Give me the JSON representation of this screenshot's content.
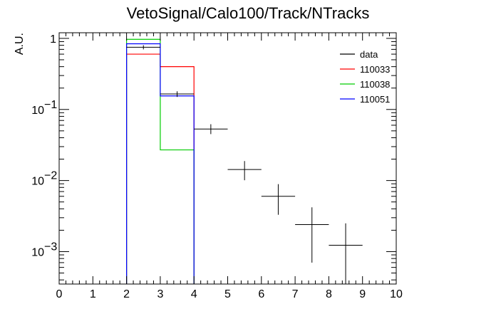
{
  "chart_data": {
    "type": "histogram",
    "title": "VetoSignal/Calo100/Track/NTracks",
    "ylabel": "A.U.",
    "xlabel": "",
    "xlim": [
      0,
      10
    ],
    "ylim": [
      0.00035,
      1.2
    ],
    "y_scale": "log",
    "grid": false,
    "legend_position": "top-right",
    "x_ticks": [
      "0",
      "1",
      "2",
      "3",
      "4",
      "5",
      "6",
      "7",
      "8",
      "9",
      "10"
    ],
    "y_ticks": [
      {
        "value": 1,
        "mantissa": "1",
        "exponent": ""
      },
      {
        "value": 0.1,
        "mantissa": "10",
        "exponent": "−1"
      },
      {
        "value": 0.01,
        "mantissa": "10",
        "exponent": "−2"
      },
      {
        "value": 0.001,
        "mantissa": "10",
        "exponent": "−3"
      }
    ],
    "data_points": [
      {
        "x": 2.5,
        "xerr": 0.5,
        "y": 0.75,
        "ylo": 0.7,
        "yhi": 0.8
      },
      {
        "x": 3.5,
        "xerr": 0.5,
        "y": 0.165,
        "ylo": 0.15,
        "yhi": 0.18
      },
      {
        "x": 4.5,
        "xerr": 0.5,
        "y": 0.053,
        "ylo": 0.045,
        "yhi": 0.062
      },
      {
        "x": 5.5,
        "xerr": 0.5,
        "y": 0.0143,
        "ylo": 0.0101,
        "yhi": 0.0188
      },
      {
        "x": 6.5,
        "xerr": 0.5,
        "y": 0.006,
        "ylo": 0.0033,
        "yhi": 0.0089
      },
      {
        "x": 7.5,
        "xerr": 0.5,
        "y": 0.0024,
        "ylo": 0.0007,
        "yhi": 0.0042
      },
      {
        "x": 8.5,
        "xerr": 0.5,
        "y": 0.00123,
        "ylo": 0.00035,
        "yhi": 0.0025
      }
    ],
    "series": [
      {
        "name": "data",
        "color": "#000000",
        "kind": "points"
      },
      {
        "name": "110033",
        "color": "#ff0000",
        "kind": "step",
        "bins": [
          {
            "x0": 2,
            "x1": 3,
            "y": 0.6
          },
          {
            "x0": 3,
            "x1": 4,
            "y": 0.4
          }
        ]
      },
      {
        "name": "110038",
        "color": "#00cc00",
        "kind": "step",
        "bins": [
          {
            "x0": 2,
            "x1": 3,
            "y": 0.97
          },
          {
            "x0": 3,
            "x1": 4,
            "y": 0.027
          }
        ]
      },
      {
        "name": "110051",
        "color": "#0000ff",
        "kind": "step",
        "bins": [
          {
            "x0": 2,
            "x1": 3,
            "y": 0.84
          },
          {
            "x0": 3,
            "x1": 4,
            "y": 0.155
          }
        ]
      }
    ]
  }
}
